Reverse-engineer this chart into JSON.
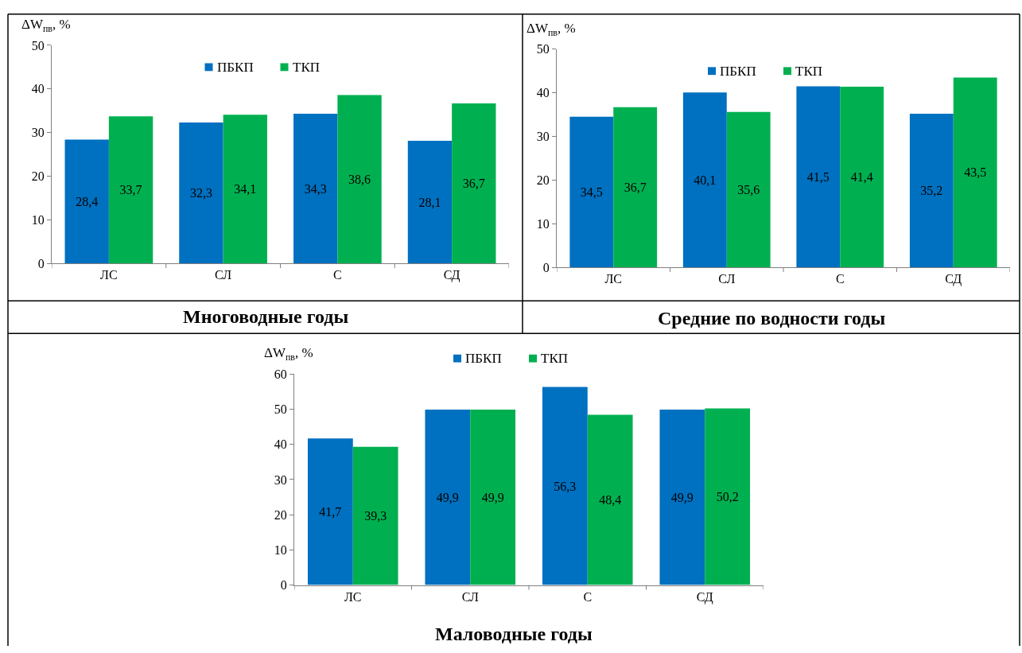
{
  "chart_data": [
    {
      "type": "bar",
      "title": "Многоводные годы",
      "ylabel": "ΔW$_{пв}$, %",
      "categories": [
        "ЛС",
        "СЛ",
        "С",
        "СД"
      ],
      "ylim": [
        0,
        50
      ],
      "yticks": [
        0,
        10,
        20,
        30,
        40,
        50
      ],
      "legend": "top",
      "grid": false,
      "series": [
        {
          "name": "ПБКП",
          "color": "#0070c0",
          "values": [
            28.4,
            32.3,
            34.3,
            28.1
          ],
          "value_labels": [
            "28,4",
            "32,3",
            "34,3",
            "28,1"
          ]
        },
        {
          "name": "ТКП",
          "color": "#00b050",
          "values": [
            33.7,
            34.1,
            38.6,
            36.7
          ],
          "value_labels": [
            "33,7",
            "34,1",
            "38,6",
            "36,7"
          ]
        }
      ]
    },
    {
      "type": "bar",
      "title": "Средние по водности годы",
      "ylabel": "ΔW$_{пв}$, %",
      "categories": [
        "ЛС",
        "СЛ",
        "С",
        "СД"
      ],
      "ylim": [
        0,
        50
      ],
      "yticks": [
        0,
        10,
        20,
        30,
        40,
        50
      ],
      "legend": "top",
      "grid": false,
      "series": [
        {
          "name": "ПБКП",
          "color": "#0070c0",
          "values": [
            34.5,
            40.1,
            41.5,
            35.2
          ],
          "value_labels": [
            "34,5",
            "40,1",
            "41,5",
            "35,2"
          ]
        },
        {
          "name": "ТКП",
          "color": "#00b050",
          "values": [
            36.7,
            35.6,
            41.4,
            43.5
          ],
          "value_labels": [
            "36,7",
            "35,6",
            "41,4",
            "43,5"
          ]
        }
      ]
    },
    {
      "type": "bar",
      "title": "Маловодные годы",
      "ylabel": "ΔW$_{пв}$, %",
      "categories": [
        "ЛС",
        "СЛ",
        "С",
        "СД"
      ],
      "ylim": [
        0,
        60
      ],
      "yticks": [
        0,
        10,
        20,
        30,
        40,
        50,
        60
      ],
      "legend": "top",
      "grid": false,
      "series": [
        {
          "name": "ПБКП",
          "color": "#0070c0",
          "values": [
            41.7,
            49.9,
            56.3,
            49.9
          ],
          "value_labels": [
            "41,7",
            "49,9",
            "56,3",
            "49,9"
          ]
        },
        {
          "name": "ТКП",
          "color": "#00b050",
          "values": [
            39.3,
            49.9,
            48.4,
            50.2
          ],
          "value_labels": [
            "39,3",
            "49,9",
            "48,4",
            "50,2"
          ]
        }
      ]
    }
  ]
}
